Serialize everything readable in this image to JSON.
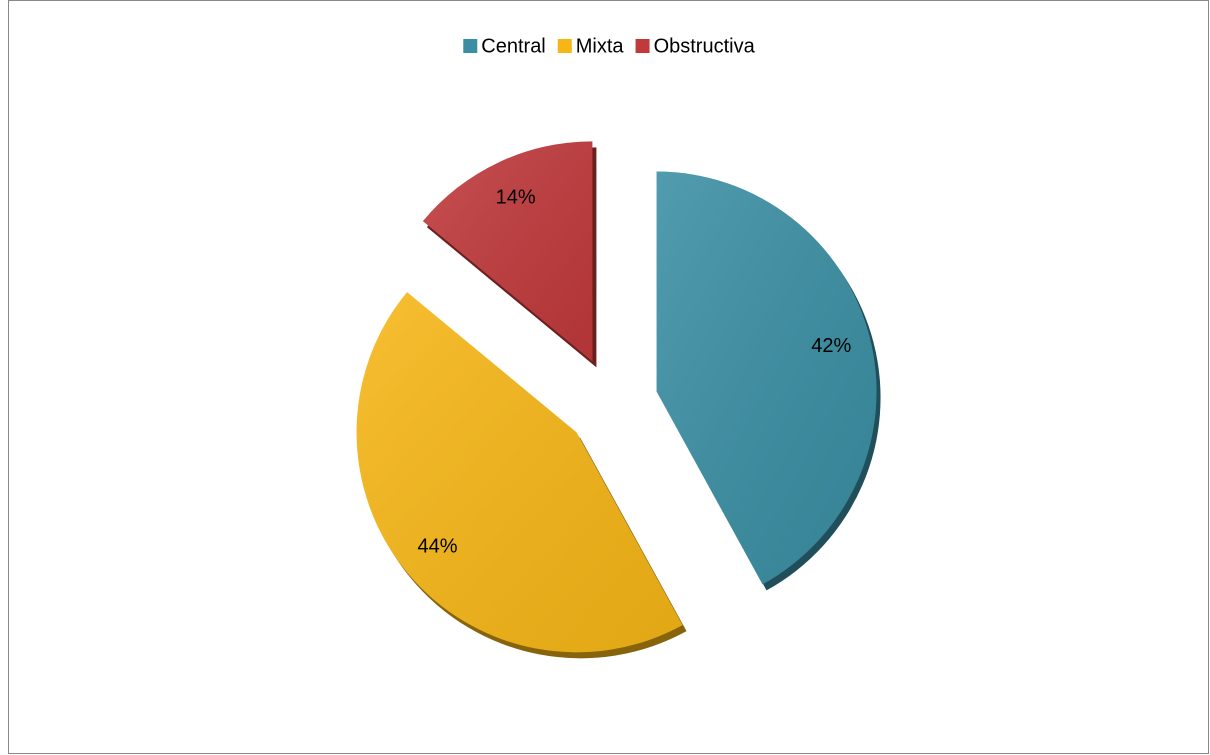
{
  "chart_data": {
    "type": "pie",
    "categories": [
      "Central",
      "Mixta",
      "Obstructiva"
    ],
    "values": [
      42,
      44,
      14
    ],
    "value_labels": [
      "42%",
      "44%",
      "14%"
    ],
    "colors": [
      "#3a8ea3",
      "#f6b616",
      "#c0393b"
    ],
    "legend": "top"
  }
}
